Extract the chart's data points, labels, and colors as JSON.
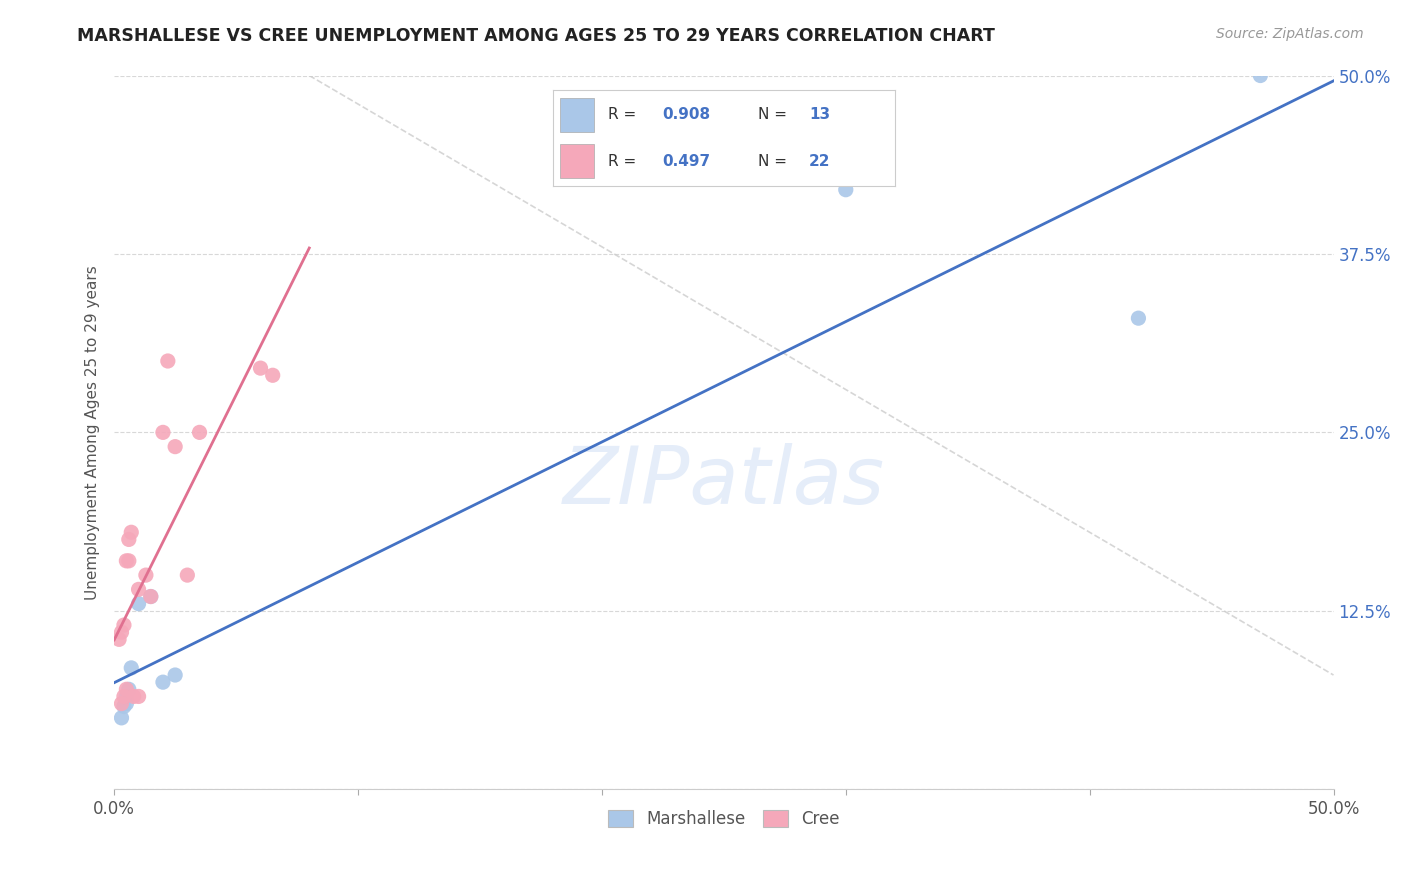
{
  "title": "MARSHALLESE VS CREE UNEMPLOYMENT AMONG AGES 25 TO 29 YEARS CORRELATION CHART",
  "source": "Source: ZipAtlas.com",
  "ylabel": "Unemployment Among Ages 25 to 29 years",
  "xlim": [
    0.0,
    0.5
  ],
  "ylim": [
    0.0,
    0.5
  ],
  "xticks": [
    0.0,
    0.1,
    0.2,
    0.3,
    0.4,
    0.5
  ],
  "yticks": [
    0.0,
    0.125,
    0.25,
    0.375,
    0.5
  ],
  "x_end_labels": {
    "0.0": "0.0%",
    "0.5": "50.0%"
  },
  "y_right_labels": {
    "0.0": "",
    "0.125": "12.5%",
    "0.25": "25.0%",
    "0.375": "37.5%",
    "0.50": "50.0%"
  },
  "marshallese_color": "#aac7e8",
  "cree_color": "#f5a8ba",
  "trend_blue": "#4472c4",
  "trend_pink": "#e07090",
  "trend_dashed_color": "#cccccc",
  "watermark": "ZIPatlas",
  "watermark_color": "#d0dff5",
  "legend_r1": "0.908",
  "legend_n1": "13",
  "legend_r2": "0.497",
  "legend_n2": "22",
  "marshallese_x": [
    0.003,
    0.004,
    0.005,
    0.005,
    0.006,
    0.007,
    0.01,
    0.015,
    0.02,
    0.025,
    0.3,
    0.42,
    0.47
  ],
  "marshallese_y": [
    0.05,
    0.058,
    0.06,
    0.065,
    0.07,
    0.085,
    0.13,
    0.135,
    0.075,
    0.08,
    0.42,
    0.33,
    0.5
  ],
  "cree_x": [
    0.002,
    0.003,
    0.003,
    0.004,
    0.004,
    0.005,
    0.005,
    0.006,
    0.006,
    0.007,
    0.008,
    0.01,
    0.01,
    0.013,
    0.015,
    0.02,
    0.022,
    0.025,
    0.03,
    0.035,
    0.06,
    0.065
  ],
  "cree_y": [
    0.105,
    0.06,
    0.11,
    0.065,
    0.115,
    0.07,
    0.16,
    0.16,
    0.175,
    0.18,
    0.065,
    0.065,
    0.14,
    0.15,
    0.135,
    0.25,
    0.3,
    0.24,
    0.15,
    0.25,
    0.295,
    0.29
  ],
  "background_color": "#ffffff",
  "grid_color": "#d8d8d8",
  "title_color": "#222222",
  "source_color": "#999999",
  "axis_label_color": "#555555",
  "right_tick_color": "#4472c4"
}
